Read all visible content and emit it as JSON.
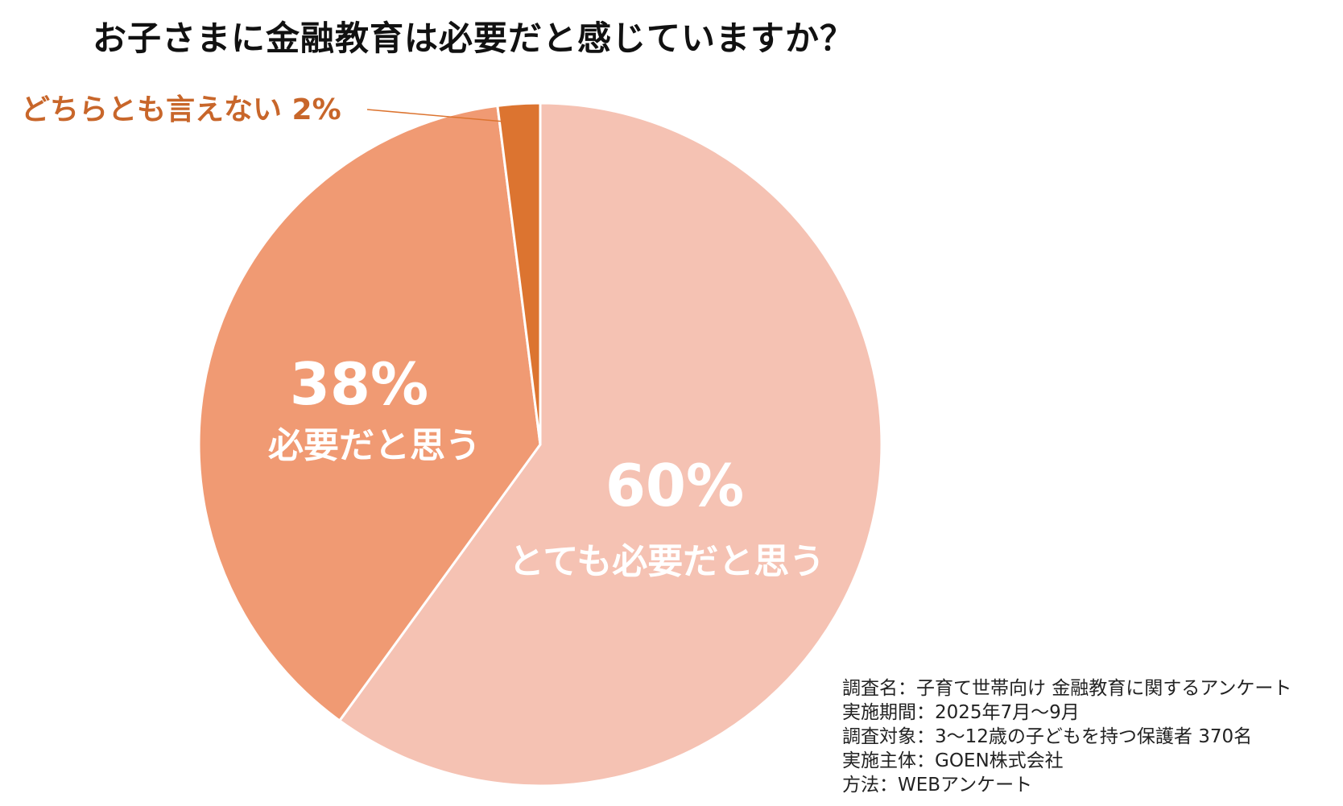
{
  "chart_data": {
    "type": "pie",
    "title": "お子さまに金融教育は必要だと感じていますか？",
    "slices": [
      {
        "name": "とても必要だと思う",
        "value": 60,
        "value_label": "60%",
        "color": "#F5C2B3",
        "label_color": "#ffffff"
      },
      {
        "name": "必要だと思う",
        "value": 38,
        "value_label": "38%",
        "color": "#F09A73",
        "label_color": "#ffffff"
      },
      {
        "name": "どちらとも言えない",
        "value": 2,
        "value_label": "2%",
        "color": "#DC7430",
        "label_color": "#C8662A",
        "callout": true
      }
    ],
    "start": "12 o'clock",
    "direction": "clockwise",
    "legend": "none"
  },
  "notes": [
    "調査名：子育て世帯向け 金融教育に関するアンケート",
    "実施期間：2025年7月〜9月",
    "調査対象：3〜12歳の子どもを持つ保護者 370名",
    "実施主体：GOEN株式会社",
    "方法：WEBアンケート"
  ]
}
